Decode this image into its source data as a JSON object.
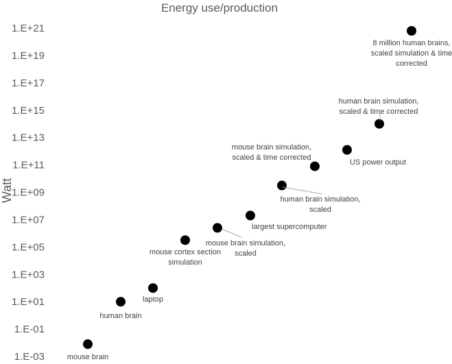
{
  "chart_data": {
    "type": "scatter",
    "title": "Energy use/production",
    "xlabel": "",
    "ylabel": "Watt",
    "y_scale": "log",
    "ylim": [
      "1.E-03",
      "1.E+21"
    ],
    "y_ticks": [
      {
        "label": "1.E+21",
        "exp": 21
      },
      {
        "label": "1.E+19",
        "exp": 19
      },
      {
        "label": "1.E+17",
        "exp": 17
      },
      {
        "label": "1.E+15",
        "exp": 15
      },
      {
        "label": "1.E+13",
        "exp": 13
      },
      {
        "label": "1.E+11",
        "exp": 11
      },
      {
        "label": "1.E+09",
        "exp": 9
      },
      {
        "label": "1.E+07",
        "exp": 7
      },
      {
        "label": "1.E+05",
        "exp": 5
      },
      {
        "label": "1.E+03",
        "exp": 3
      },
      {
        "label": "1.E+01",
        "exp": 1
      },
      {
        "label": "1.E-01",
        "exp": -1
      },
      {
        "label": "1.E-03",
        "exp": -3
      }
    ],
    "grid": false,
    "legend": "none",
    "marker_color": "#000000",
    "points": [
      {
        "label_lines": [
          "mouse brain"
        ],
        "x": 1,
        "exp": -2.1
      },
      {
        "label_lines": [
          "human brain"
        ],
        "x": 2,
        "exp": 1.0
      },
      {
        "label_lines": [
          "laptop"
        ],
        "x": 3,
        "exp": 2.0
      },
      {
        "label_lines": [
          "mouse cortex section",
          "simulation"
        ],
        "x": 4,
        "exp": 5.5
      },
      {
        "label_lines": [
          "mouse brain simulation,",
          "scaled"
        ],
        "x": 5,
        "exp": 6.4
      },
      {
        "label_lines": [
          "largest supercomputer"
        ],
        "x": 6,
        "exp": 7.3
      },
      {
        "label_lines": [
          "human brain simulation,",
          "scaled"
        ],
        "x": 7,
        "exp": 9.5
      },
      {
        "label_lines": [
          "mouse brain simulation,",
          "scaled & time corrected"
        ],
        "x": 8,
        "exp": 10.9
      },
      {
        "label_lines": [
          "US power output"
        ],
        "x": 9,
        "exp": 12.1
      },
      {
        "label_lines": [
          "human brain simulation,",
          "scaled & time corrected"
        ],
        "x": 10,
        "exp": 14.0
      },
      {
        "label_lines": [
          "8 million human brains,",
          "scaled simulation & time",
          "corrected"
        ],
        "x": 11,
        "exp": 20.8
      }
    ]
  }
}
